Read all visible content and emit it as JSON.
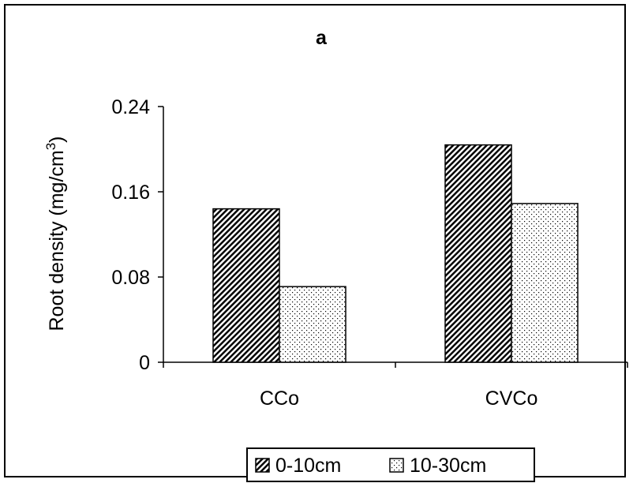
{
  "chart_data": {
    "type": "bar",
    "title": "a",
    "ylabel": "Root density (mg/cm",
    "ylabel_superscript": "3",
    "ylabel_suffix": ")",
    "xlabel": "",
    "categories": [
      "CCo",
      "CVCo"
    ],
    "ylim": [
      0,
      0.24
    ],
    "yticks": [
      0,
      0.08,
      0.16,
      0.24
    ],
    "ytick_labels": [
      "0",
      "0.08",
      "0.16",
      "0.24"
    ],
    "series": [
      {
        "name": "0-10cm",
        "values": [
          0.144,
          0.204
        ],
        "pattern": "diagonal-hatch"
      },
      {
        "name": "10-30cm",
        "values": [
          0.071,
          0.149
        ],
        "pattern": "dots"
      }
    ],
    "grid": false,
    "legend_position": "bottom"
  }
}
